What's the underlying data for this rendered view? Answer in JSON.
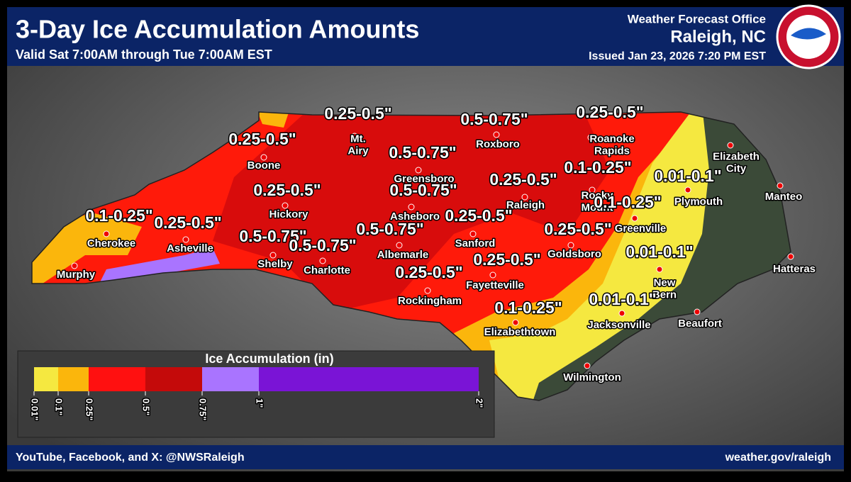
{
  "header": {
    "title": "3-Day Ice Accumulation Amounts",
    "subtitle": "Valid Sat 7:00AM through Tue 7:00AM EST",
    "office": "Weather Forecast Office",
    "location": "Raleigh, NC",
    "issued": "Issued Jan 23, 2026 7:20 PM EST"
  },
  "range_labels": [
    "0.25-0.5\"",
    "0.5-0.75\"",
    "0.25-0.5\"",
    "0.25-0.5\"",
    "0.5-0.75\"",
    "0.1-0.25\"",
    "0.01-0.1\"",
    "0.25-0.5\"",
    "0.25-0.5\"",
    "0.5-0.75\"",
    "0.1-0.25\"",
    "0.25-0.5\"",
    "0.25-0.5\"",
    "0.1-0.25\"",
    "0.25-0.5\"",
    "0.5-0.75\"",
    "0.5-0.75\"",
    "0.5-0.75\"",
    "0.01-0.1\"",
    "0.25-0.5\"",
    "0.25-0.5\"",
    "0.1-0.25\"",
    "0.01-0.1\""
  ],
  "cities": [
    [
      "Boone"
    ],
    [
      "Mt.",
      "Airy"
    ],
    [
      "Roxboro"
    ],
    [
      "Roanoke",
      "Rapids"
    ],
    [
      "Elizabeth",
      "City"
    ],
    [
      "Manteo"
    ],
    [
      "Greensboro"
    ],
    [
      "Raleigh"
    ],
    [
      "Rocky",
      "Mount"
    ],
    [
      "Plymouth"
    ],
    [
      "Hickory"
    ],
    [
      "Asheboro"
    ],
    [
      "Greenville"
    ],
    [
      "Cherokee"
    ],
    [
      "Asheville"
    ],
    [
      "Shelby"
    ],
    [
      "Charlotte"
    ],
    [
      "Albemarle"
    ],
    [
      "Sanford"
    ],
    [
      "Goldsboro"
    ],
    [
      "Murphy"
    ],
    [
      "Hatteras"
    ],
    [
      "New",
      "Bern"
    ],
    [
      "Fayetteville"
    ],
    [
      "Rockingham"
    ],
    [
      "Beaufort"
    ],
    [
      "Jacksonville"
    ],
    [
      "Elizabethtown"
    ],
    [
      "Wilmington"
    ]
  ],
  "legend": {
    "title": "Ice Accumulation (in)",
    "colors": [
      "#f5e840",
      "#fbb60c",
      "#ff1010",
      "#c40a0a",
      "#a974ff",
      "#7a14d6"
    ],
    "ticks": [
      "0.01\"",
      "0.1\"",
      "0.25\"",
      "0.5\"",
      "0.75\"",
      "1\"",
      "2\""
    ]
  },
  "footer": {
    "left": "YouTube, Facebook, and X: @NWSRaleigh",
    "right": "weather.gov/raleigh"
  }
}
